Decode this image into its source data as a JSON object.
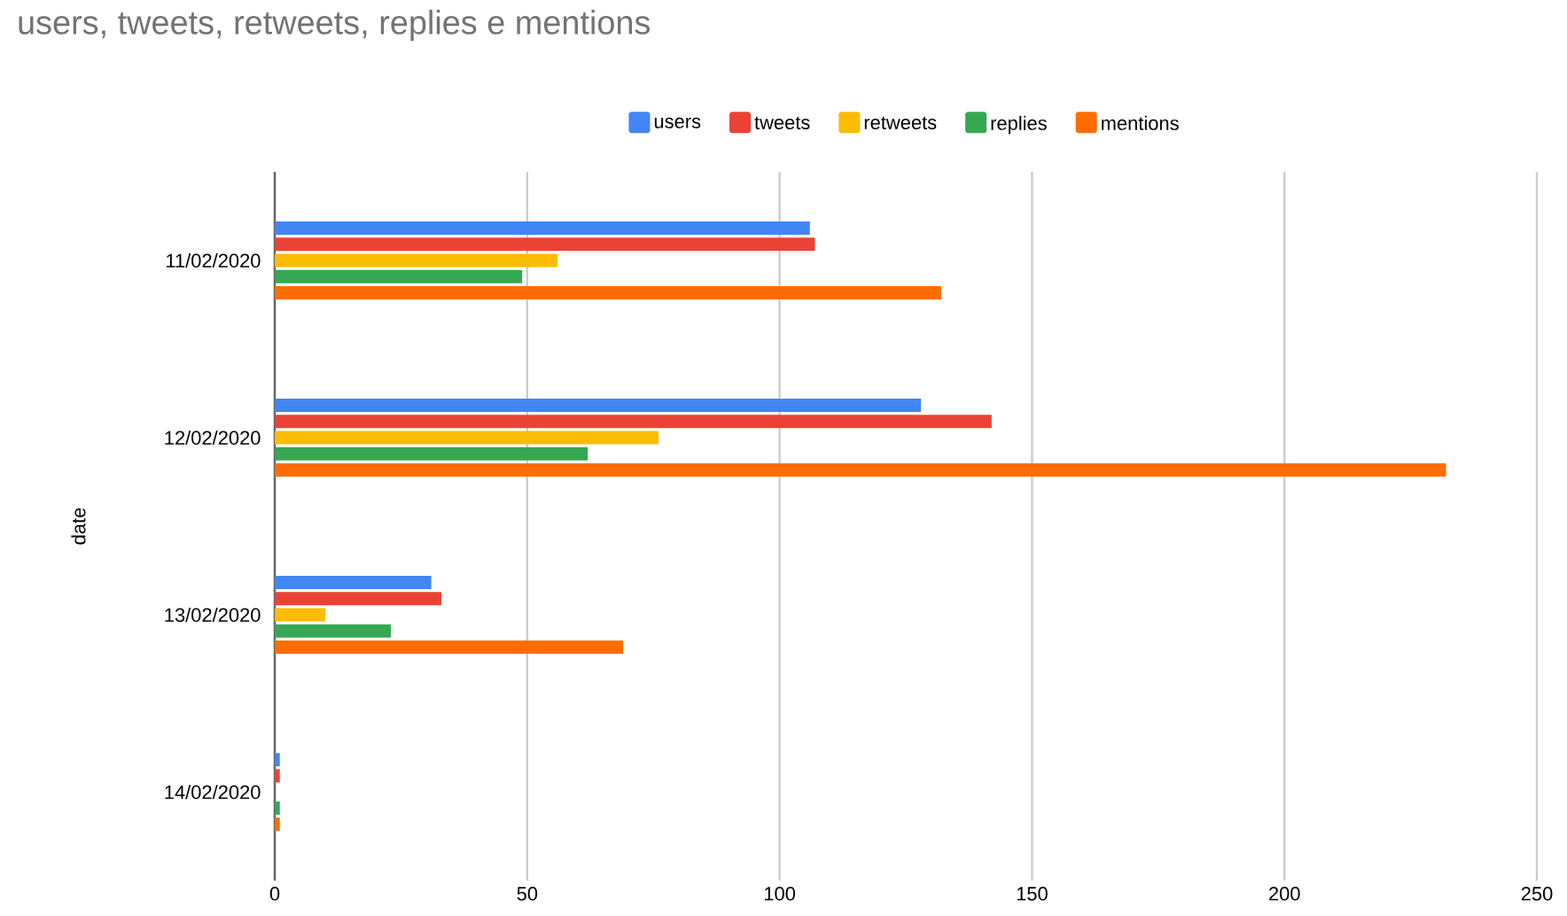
{
  "chart_data": {
    "type": "bar",
    "orientation": "horizontal",
    "title": "users, tweets, retweets, replies e mentions",
    "ylabel": "date",
    "categories": [
      "11/02/2020",
      "12/02/2020",
      "13/02/2020",
      "14/02/2020"
    ],
    "series": [
      {
        "name": "users",
        "color": "#4285f4",
        "values": [
          106,
          128,
          31,
          1
        ]
      },
      {
        "name": "tweets",
        "color": "#ea4335",
        "values": [
          107,
          142,
          33,
          1
        ]
      },
      {
        "name": "retweets",
        "color": "#fbbc04",
        "values": [
          56,
          76,
          10,
          0
        ]
      },
      {
        "name": "replies",
        "color": "#34a853",
        "values": [
          49,
          62,
          23,
          1
        ]
      },
      {
        "name": "mentions",
        "color": "#ff6d01",
        "values": [
          132,
          232,
          69,
          1
        ]
      }
    ],
    "xlim": [
      0,
      250
    ],
    "xticks": [
      0,
      50,
      100,
      150,
      200,
      250
    ],
    "grid": "x",
    "legend": "top"
  }
}
